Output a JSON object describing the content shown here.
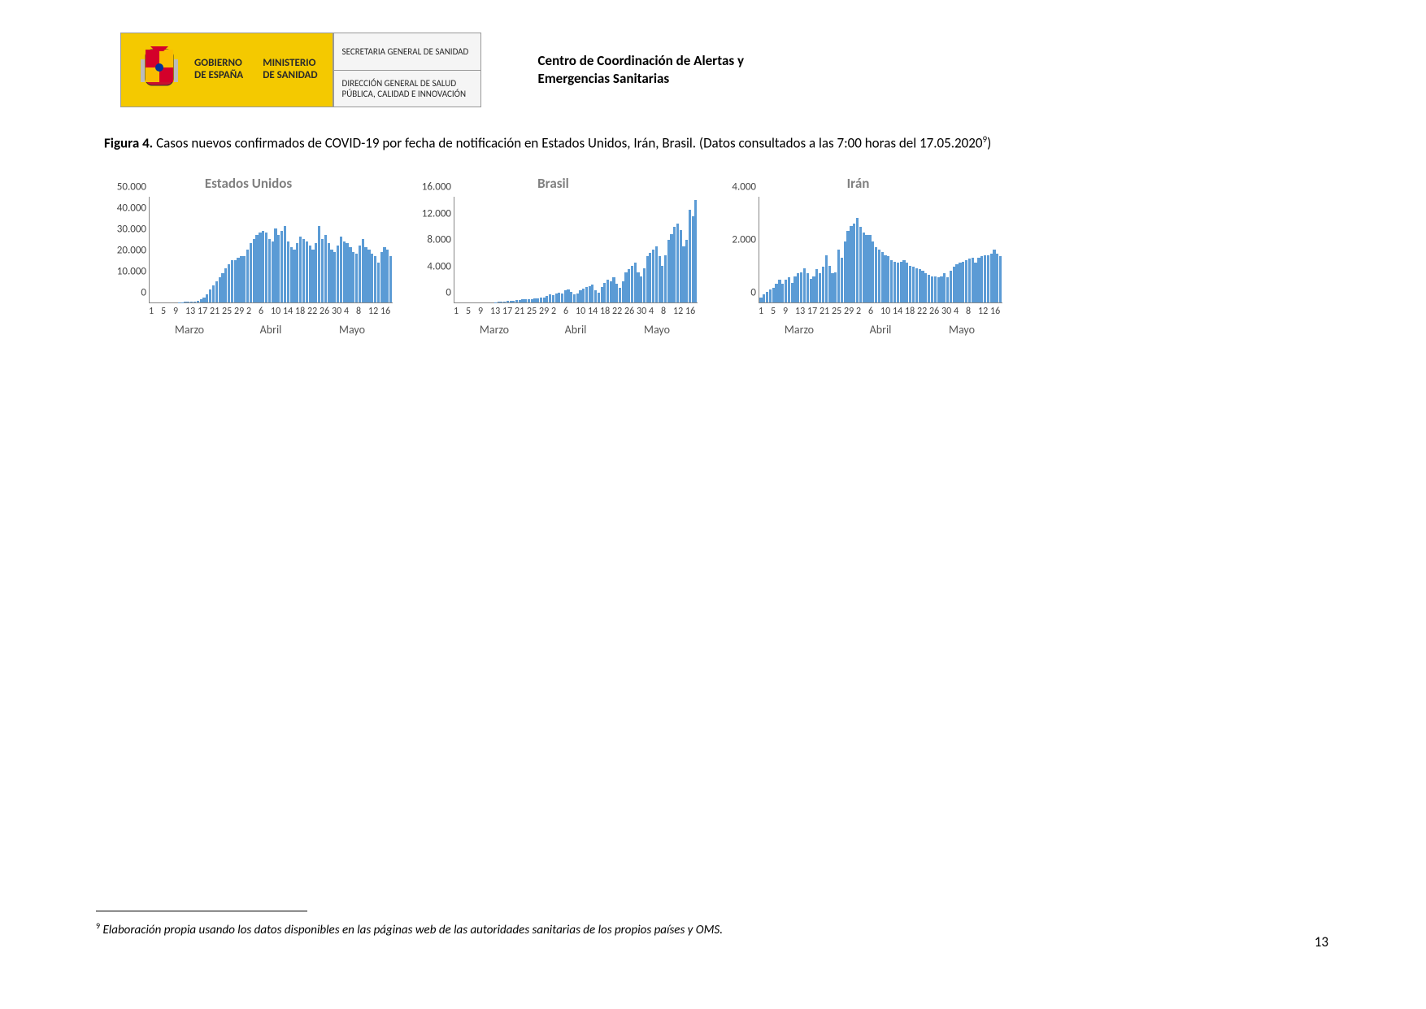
{
  "header": {
    "gobierno_line1": "GOBIERNO",
    "gobierno_line2": "DE ESPAÑA",
    "ministerio_line1": "MINISTERIO",
    "ministerio_line2": "DE SANIDAD",
    "dept1": "SECRETARIA GENERAL DE SANIDAD",
    "dept2": "DIRECCIÓN GENERAL DE SALUD PÚBLICA, CALIDAD E INNOVACIÓN",
    "center_title": "Centro de Coordinación de Alertas y Emergencias Sanitarias"
  },
  "figure": {
    "label": "Figura 4.",
    "caption": " Casos nuevos confirmados de COVID-19 por fecha de notificación en Estados Unidos, Irán, Brasil. (Datos consultados a las 7:00 horas del 17.05.2020",
    "sup": "9",
    "close": ")"
  },
  "charts": {
    "bar_color": "#5b9bd5",
    "axis_color": "#888888",
    "title_color": "#808080",
    "title_fontsize": 17,
    "tick_fontsize": 13,
    "month_labels": [
      "Marzo",
      "Abril",
      "Mayo"
    ],
    "x_tick_labels": [
      "1",
      "5",
      "9",
      "13",
      "17",
      "21",
      "25",
      "29",
      "2",
      "6",
      "10",
      "14",
      "18",
      "22",
      "26",
      "30",
      "4",
      "8",
      "12",
      "16"
    ],
    "panels": [
      {
        "title": "Estados Unidos",
        "ylim": [
          0,
          50000
        ],
        "y_ticks": [
          0,
          10000,
          20000,
          30000,
          40000,
          50000
        ],
        "y_labels": [
          "0",
          "10.000",
          "20.000",
          "30.000",
          "40.000",
          "50.000"
        ],
        "values": [
          0,
          0,
          0,
          0,
          0,
          0,
          0,
          0,
          0,
          100,
          150,
          200,
          250,
          400,
          500,
          800,
          1500,
          2500,
          4000,
          6000,
          8000,
          10000,
          12000,
          14000,
          16000,
          18000,
          20000,
          20000,
          21000,
          22000,
          22000,
          25000,
          28000,
          30000,
          32000,
          33000,
          34000,
          33000,
          30000,
          29000,
          35000,
          32000,
          34000,
          36000,
          29000,
          26000,
          25000,
          28000,
          31000,
          30000,
          29000,
          27000,
          25000,
          28000,
          36000,
          30000,
          32000,
          28000,
          25000,
          24000,
          27000,
          31000,
          29000,
          28000,
          26000,
          24000,
          23000,
          27000,
          30000,
          26000,
          25000,
          23000,
          22000,
          19000,
          24000,
          26000,
          25000,
          22000
        ]
      },
      {
        "title": "Brasil",
        "ylim": [
          0,
          16000
        ],
        "y_ticks": [
          0,
          4000,
          8000,
          12000,
          16000
        ],
        "y_labels": [
          "0",
          "4.000",
          "8.000",
          "12.000",
          "16.000"
        ],
        "values": [
          0,
          0,
          0,
          0,
          0,
          0,
          0,
          0,
          0,
          0,
          0,
          0,
          0,
          50,
          80,
          100,
          150,
          200,
          250,
          300,
          350,
          400,
          450,
          500,
          500,
          550,
          600,
          650,
          700,
          800,
          1000,
          1200,
          1100,
          1300,
          1500,
          1400,
          1800,
          2000,
          1600,
          1200,
          1400,
          1900,
          2100,
          2300,
          2500,
          2700,
          1800,
          1500,
          2400,
          3000,
          3500,
          3200,
          3800,
          2800,
          2200,
          3200,
          4500,
          5000,
          5500,
          6000,
          4600,
          4000,
          5200,
          7000,
          7500,
          8000,
          8500,
          7000,
          5500,
          7200,
          9500,
          10300,
          11500,
          12000,
          11000,
          8500,
          9500,
          14000,
          13000,
          15500
        ]
      },
      {
        "title": "Irán",
        "ylim": [
          0,
          4000
        ],
        "y_ticks": [
          0,
          2000,
          4000
        ],
        "y_labels": [
          "0",
          "2.000",
          "4.000"
        ],
        "values": [
          200,
          300,
          400,
          500,
          550,
          700,
          850,
          700,
          850,
          950,
          750,
          1000,
          1100,
          1150,
          1300,
          1100,
          900,
          1000,
          1250,
          1100,
          1350,
          1800,
          1400,
          1100,
          1150,
          2000,
          1700,
          2300,
          2700,
          2900,
          3000,
          3200,
          2850,
          2650,
          2550,
          2550,
          2300,
          2100,
          2000,
          1900,
          1800,
          1750,
          1600,
          1550,
          1500,
          1550,
          1600,
          1500,
          1400,
          1350,
          1300,
          1250,
          1200,
          1100,
          1050,
          1000,
          980,
          950,
          1000,
          1100,
          950,
          1200,
          1350,
          1450,
          1500,
          1550,
          1600,
          1650,
          1680,
          1520,
          1700,
          1750,
          1780,
          1800,
          1850,
          2000,
          1850,
          1750
        ]
      }
    ]
  },
  "footnote": {
    "sup": "9",
    "text": " Elaboración propia usando los datos disponibles en las páginas web de las autoridades sanitarias de los propios países y OMS."
  },
  "page_number": "13"
}
